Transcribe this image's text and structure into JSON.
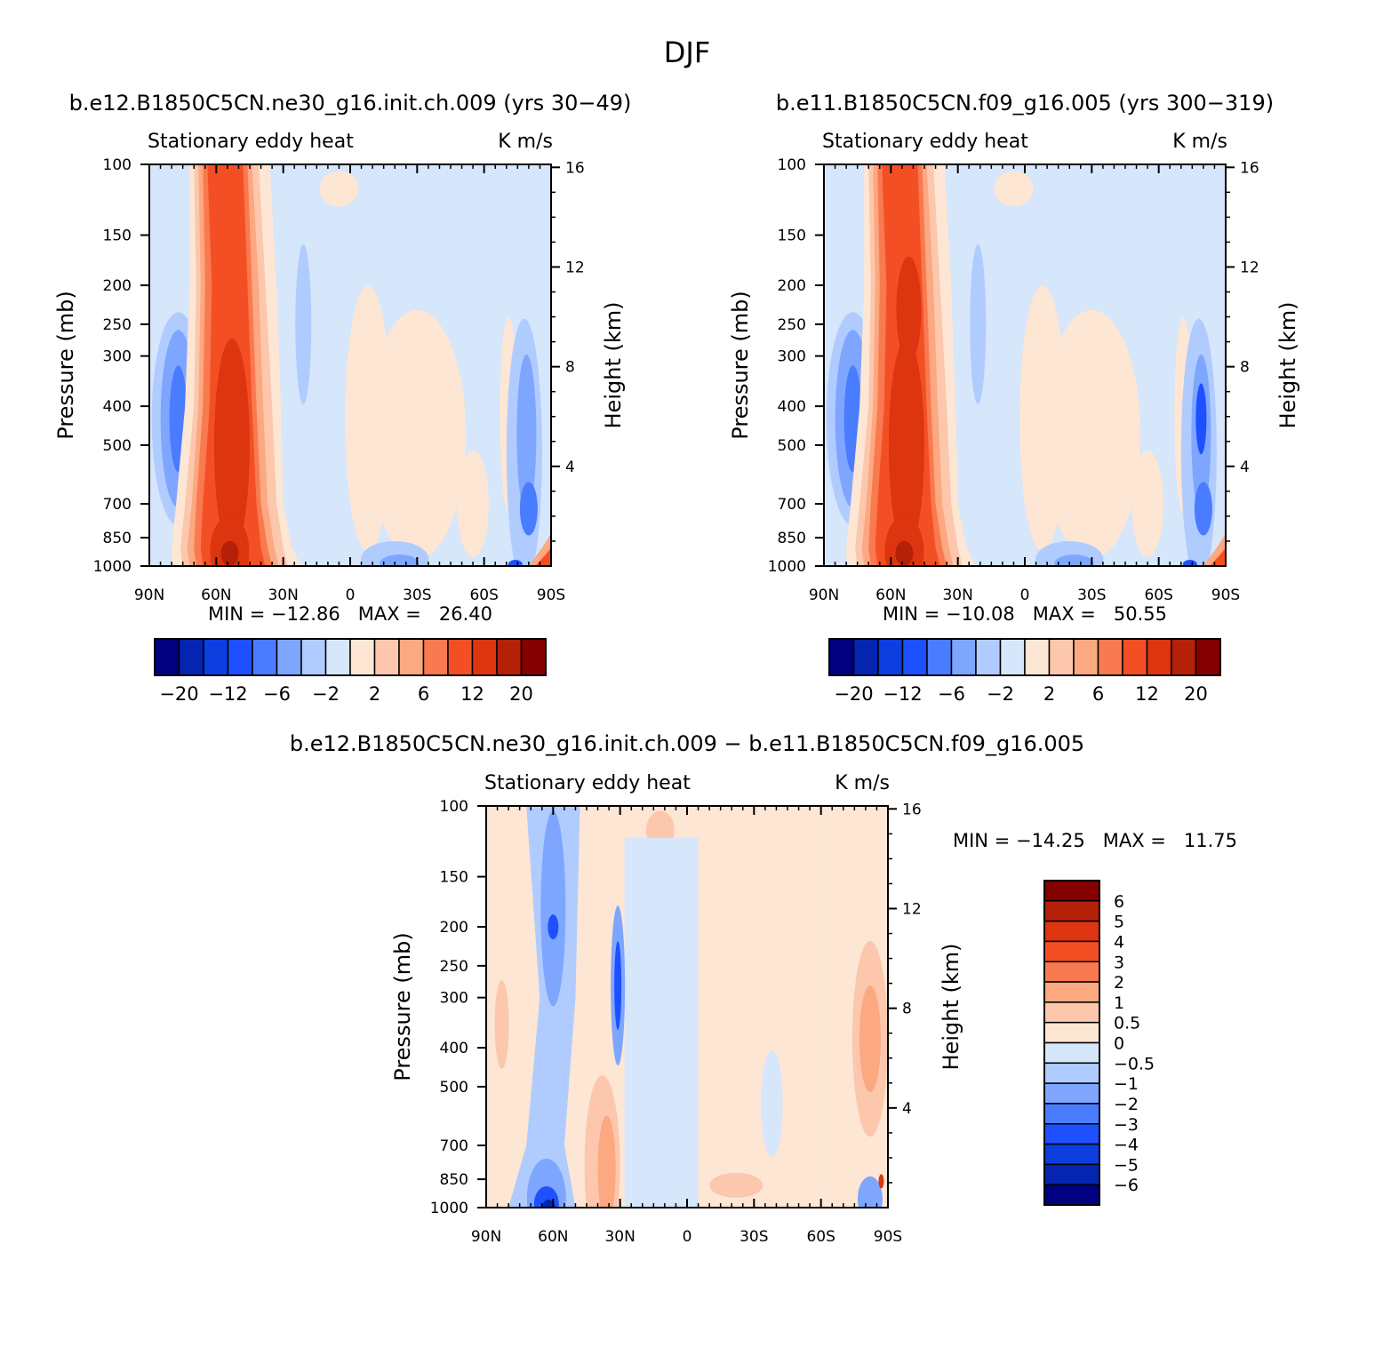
{
  "figure": {
    "title": "DJF"
  },
  "colors": {
    "blues": [
      "#000080",
      "#0525b0",
      "#0c3ee0",
      "#1e50ff",
      "#4a7cff",
      "#7fa6ff",
      "#b0ccff",
      "#d6e6fb"
    ],
    "reds": [
      "#fde6d4",
      "#fcc7ad",
      "#fca880",
      "#f97a50",
      "#f44f24",
      "#dd3510",
      "#b52008",
      "#850000"
    ],
    "background": "#ffffff"
  },
  "chart_data": [
    {
      "type": "heatmap",
      "title": "b.e12.B1850C5CN.ne30_g16.init.ch.009 (yrs 30−49)",
      "field_label": "Stationary eddy heat",
      "units": "K m/s",
      "xlabel": "",
      "ylabel": "Pressure (mb)",
      "ylabel_right": "Height (km)",
      "x_ticks": [
        "90N",
        "60N",
        "30N",
        "0",
        "30S",
        "60S",
        "90S"
      ],
      "y_ticks": [
        "100",
        "150",
        "200",
        "250",
        "300",
        "400",
        "500",
        "700",
        "850",
        "1000"
      ],
      "y_right_ticks": [
        "4",
        "8",
        "12",
        "16"
      ],
      "ylim": [
        1000,
        100
      ],
      "min_max_text": "MIN = −12.86   MAX =   26.40",
      "colorbar_labels": [
        "−20",
        "−12",
        "−6",
        "−2",
        "2",
        "6",
        "12",
        "20"
      ],
      "features": [
        {
          "lat": 55,
          "p": 400,
          "value": 16
        },
        {
          "lat": 55,
          "p": 900,
          "value": 20
        },
        {
          "lat": 75,
          "p": 400,
          "value": -4
        },
        {
          "lat": -75,
          "p": 400,
          "value": -4
        },
        {
          "lat": -85,
          "p": 950,
          "value": 12
        }
      ]
    },
    {
      "type": "heatmap",
      "title": "b.e11.B1850C5CN.f09_g16.005 (yrs 300−319)",
      "field_label": "Stationary eddy heat",
      "units": "K m/s",
      "xlabel": "",
      "ylabel": "Pressure (mb)",
      "ylabel_right": "Height (km)",
      "x_ticks": [
        "90N",
        "60N",
        "30N",
        "0",
        "30S",
        "60S",
        "90S"
      ],
      "y_ticks": [
        "100",
        "150",
        "200",
        "250",
        "300",
        "400",
        "500",
        "700",
        "850",
        "1000"
      ],
      "y_right_ticks": [
        "4",
        "8",
        "12",
        "16"
      ],
      "ylim": [
        1000,
        100
      ],
      "min_max_text": "MIN = −10.08   MAX =   50.55",
      "colorbar_labels": [
        "−20",
        "−12",
        "−6",
        "−2",
        "2",
        "6",
        "12",
        "20"
      ],
      "features": [
        {
          "lat": 55,
          "p": 200,
          "value": 16
        },
        {
          "lat": 55,
          "p": 900,
          "value": 20
        },
        {
          "lat": 75,
          "p": 400,
          "value": -5
        },
        {
          "lat": -80,
          "p": 400,
          "value": -7
        },
        {
          "lat": -85,
          "p": 950,
          "value": 12
        }
      ]
    },
    {
      "type": "heatmap",
      "title": "b.e12.B1850C5CN.ne30_g16.init.ch.009 − b.e11.B1850C5CN.f09_g16.005",
      "field_label": "Stationary eddy heat",
      "units": "K m/s",
      "xlabel": "",
      "ylabel": "Pressure (mb)",
      "ylabel_right": "Height (km)",
      "x_ticks": [
        "90N",
        "60N",
        "30N",
        "0",
        "30S",
        "60S",
        "90S"
      ],
      "y_ticks": [
        "100",
        "150",
        "200",
        "250",
        "300",
        "400",
        "500",
        "700",
        "850",
        "1000"
      ],
      "y_right_ticks": [
        "4",
        "8",
        "12",
        "16"
      ],
      "ylim": [
        1000,
        100
      ],
      "min_max_text": "MIN = −14.25   MAX =   11.75",
      "colorbar_labels": [
        "6",
        "5",
        "4",
        "3",
        "2",
        "1",
        "0.5",
        "0",
        "−0.5",
        "−1",
        "−2",
        "−3",
        "−4",
        "−5",
        "−6"
      ],
      "features": [
        {
          "lat": 60,
          "p": 200,
          "value": -3
        },
        {
          "lat": 30,
          "p": 280,
          "value": -4
        },
        {
          "lat": 60,
          "p": 980,
          "value": -6
        },
        {
          "lat": 35,
          "p": 750,
          "value": 1
        },
        {
          "lat": -82,
          "p": 380,
          "value": 1.5
        }
      ]
    }
  ]
}
